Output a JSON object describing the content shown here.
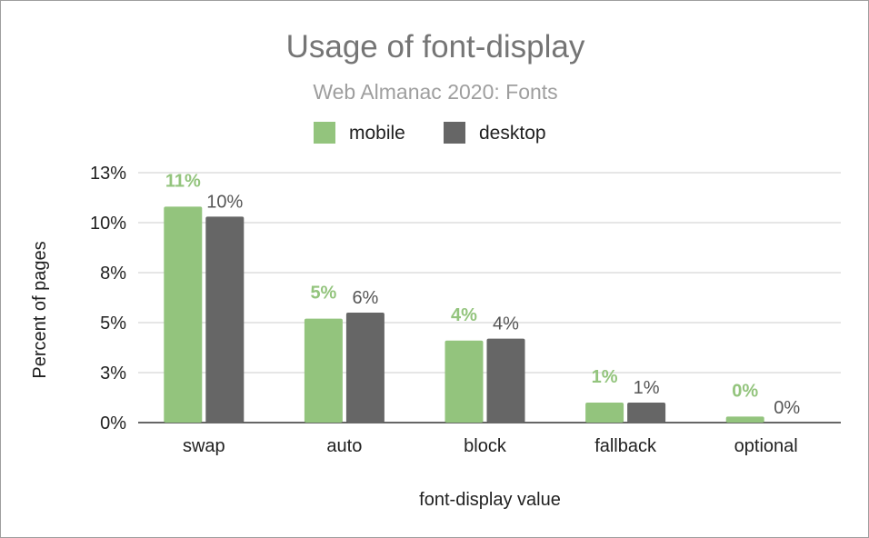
{
  "chart_data": {
    "type": "bar",
    "title": "Usage of font-display",
    "subtitle": "Web Almanac 2020: Fonts",
    "xlabel": "font-display value",
    "ylabel": "Percent of pages",
    "categories": [
      "swap",
      "auto",
      "block",
      "fallback",
      "optional"
    ],
    "series": [
      {
        "name": "mobile",
        "color": "#93c47d",
        "values": [
          10.8,
          5.2,
          4.1,
          1.0,
          0.3
        ],
        "labels": [
          "11%",
          "5%",
          "4%",
          "1%",
          "0%"
        ]
      },
      {
        "name": "desktop",
        "color": "#666666",
        "values": [
          10.3,
          5.5,
          4.2,
          1.0,
          0.0
        ],
        "labels": [
          "10%",
          "6%",
          "4%",
          "1%",
          "0%"
        ]
      }
    ],
    "ylim": [
      0,
      12.5
    ],
    "yticks": [
      0,
      2.5,
      5,
      7.5,
      10,
      12.5
    ],
    "ytick_labels": [
      "0%",
      "3%",
      "5%",
      "8%",
      "10%",
      "13%"
    ],
    "grid": true,
    "legend_position": "top-center"
  }
}
